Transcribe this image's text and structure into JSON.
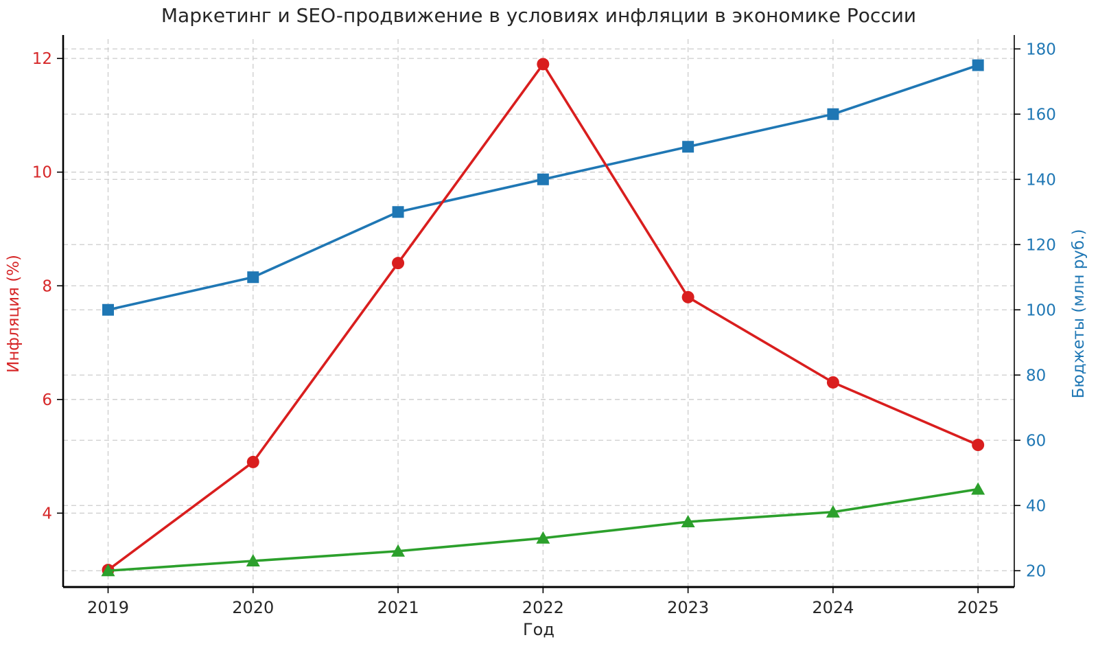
{
  "chart_data": {
    "type": "line",
    "title": "Маркетинг и SEO-продвижение в условиях инфляции в экономике России",
    "xlabel": "Год",
    "ylabel_left": "Инфляция (%)",
    "ylabel_right": "Бюджеты (млн руб.)",
    "categories": [
      "2019",
      "2020",
      "2021",
      "2022",
      "2023",
      "2024",
      "2025"
    ],
    "series": [
      {
        "id": "budgets-blue-squares",
        "name": "Бюджеты (млн руб.)",
        "axis": "right",
        "marker": "square",
        "color": "#1f77b4",
        "values": [
          100,
          110,
          130,
          140,
          150,
          160,
          175
        ]
      },
      {
        "id": "inflation-red-circles",
        "name": "Инфляция (%)",
        "axis": "left",
        "marker": "circle",
        "color": "#d91e1e",
        "values": [
          3.0,
          4.9,
          8.4,
          11.9,
          7.8,
          6.3,
          5.2
        ]
      },
      {
        "id": "green-triangles",
        "name": "",
        "axis": "right",
        "marker": "triangle",
        "color": "#2ca02c",
        "values": [
          20,
          23,
          26,
          30,
          35,
          38,
          45
        ]
      }
    ],
    "yticks_left": [
      4,
      6,
      8,
      10,
      12
    ],
    "yticks_right": [
      20,
      40,
      60,
      80,
      100,
      120,
      140,
      160,
      180
    ],
    "ylim_left": [
      2.7,
      12.34
    ],
    "ylim_right": [
      15,
      183
    ],
    "xlim_index": [
      -0.31,
      6.25
    ],
    "grid": true,
    "grid_style": "dashed",
    "legend_position": "none",
    "tick_color_left": "#d62728",
    "tick_color_right": "#1f77b4",
    "tick_color_x": "#262626",
    "grid_color": "#cccccc",
    "spine_color": "#000000"
  }
}
